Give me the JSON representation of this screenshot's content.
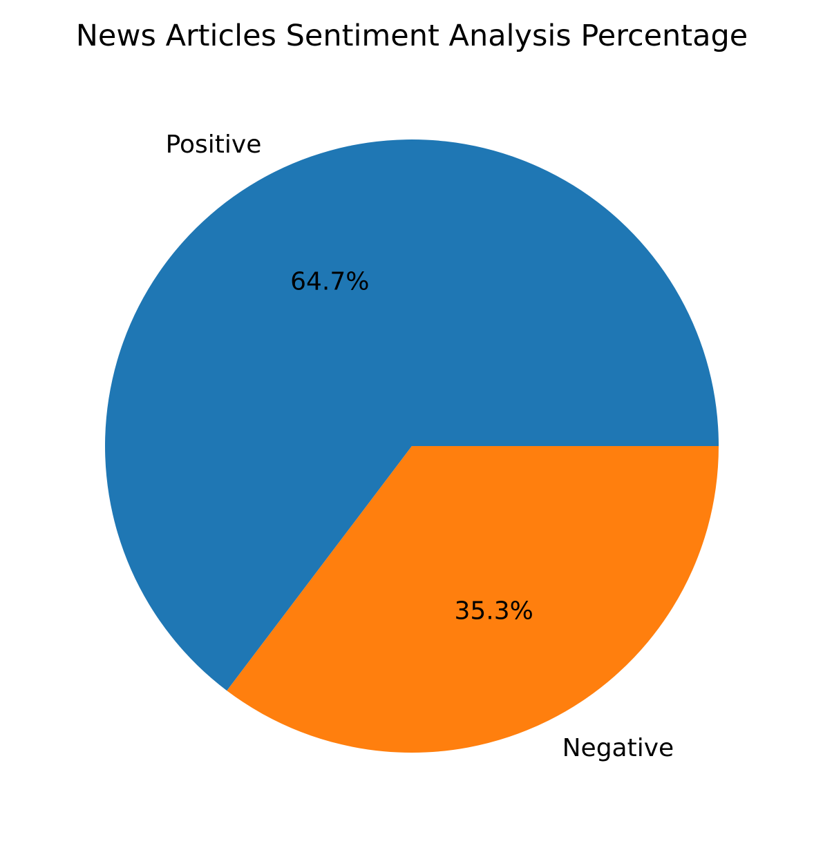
{
  "chart_data": {
    "type": "pie",
    "title": "News Articles Sentiment Analysis Percentage",
    "slices": [
      {
        "label": "Positive",
        "percent": 64.7,
        "percent_label": "64.7%",
        "color": "#1f77b4"
      },
      {
        "label": "Negative",
        "percent": 35.3,
        "percent_label": "35.3%",
        "color": "#ff7f0e"
      }
    ],
    "start_angle_deg": 0,
    "direction": "counterclockwise",
    "legend": "none"
  }
}
